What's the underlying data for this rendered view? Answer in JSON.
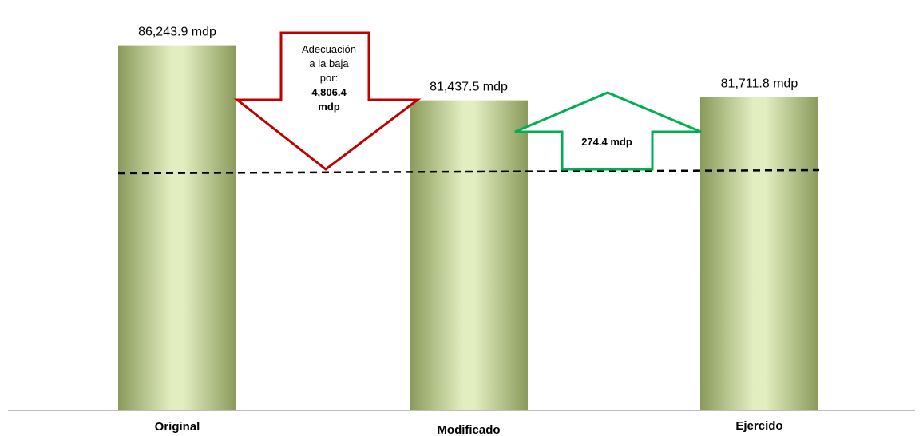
{
  "chart_data": {
    "type": "bar",
    "categories": [
      "Original",
      "Modificado",
      "Ejercido"
    ],
    "values": [
      86243.9,
      81437.5,
      81711.8
    ],
    "value_labels": [
      "86,243.9 mdp",
      "81,437.5 mdp",
      "81,711.8 mdp"
    ],
    "title": "",
    "xlabel": "",
    "ylabel": "",
    "ylim": [
      54400,
      87400
    ],
    "grid": false,
    "reference_line": {
      "style": "dashed",
      "color": "#000000"
    },
    "bar_colors": {
      "edge": "#8a9a5b",
      "center": "#e2eec0"
    },
    "annotations": [
      {
        "type": "down-arrow",
        "color": "#c00000",
        "lines": [
          "Adecuación",
          "a la baja",
          "por:"
        ],
        "bold_lines": [
          "4,806.4",
          "mdp"
        ]
      },
      {
        "type": "up-arrow",
        "color": "#00b050",
        "bold_lines": [
          "274.4 mdp"
        ]
      }
    ]
  }
}
